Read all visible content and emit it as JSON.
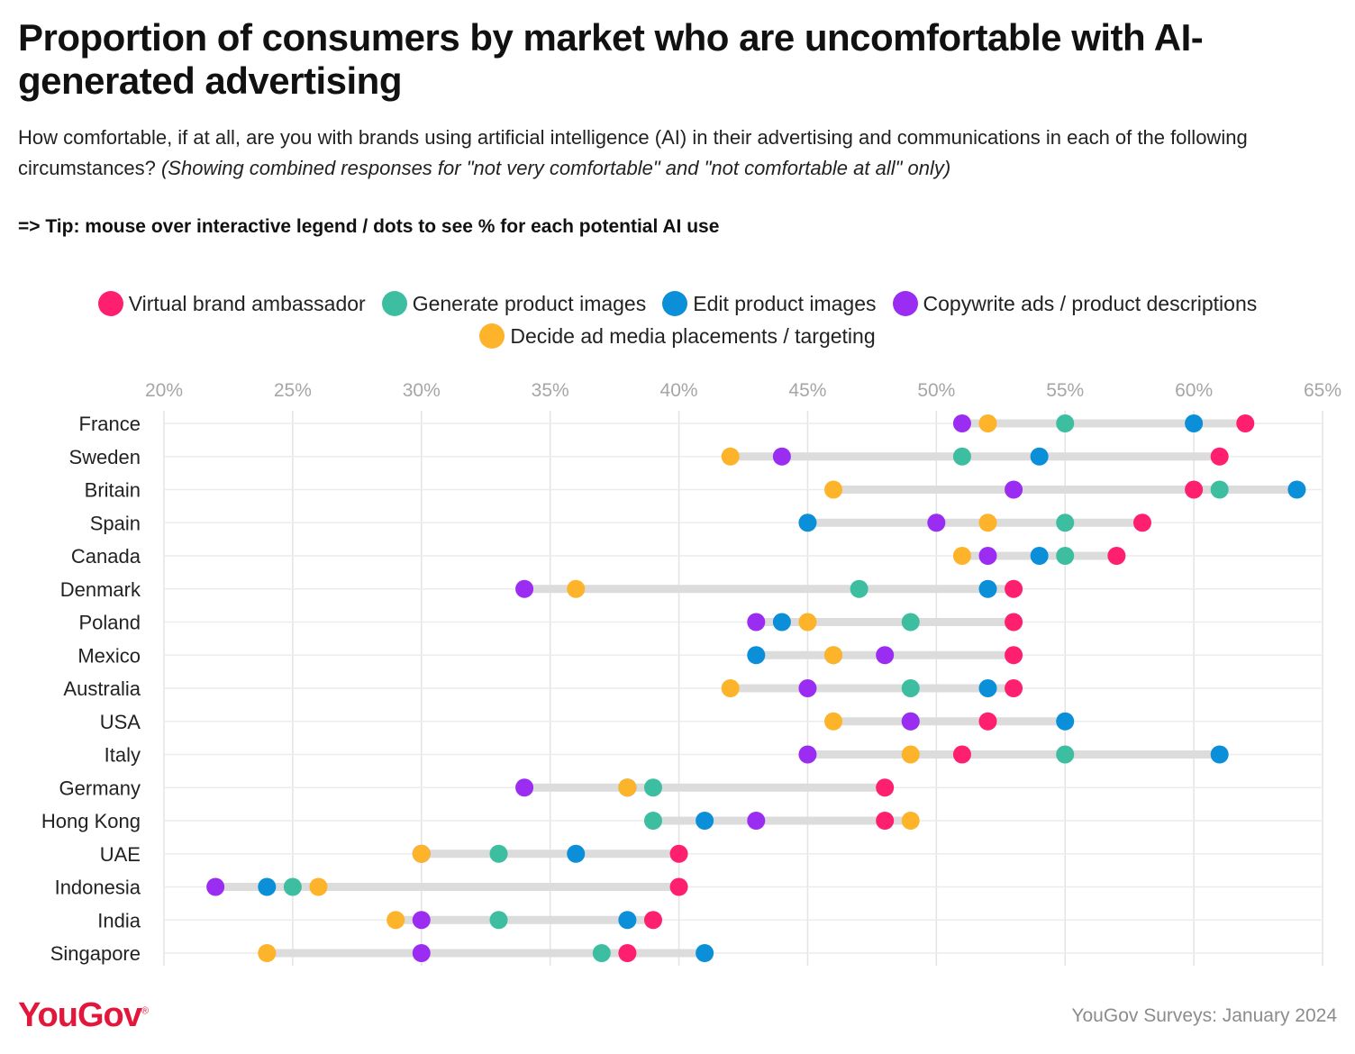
{
  "header": {
    "title": "Proportion of consumers by market who are uncomfortable with AI-generated advertising",
    "subtitle": "How comfortable, if at all, are you with brands using artificial intelligence (AI) in their advertising and communications in each of the following circumstances?",
    "subtitle_note": "(Showing combined responses for \"not very comfortable\" and \"not comfortable at all\" only)",
    "tip": "=> Tip: mouse over interactive legend / dots to see % for each potential AI use"
  },
  "footer": {
    "logo": "YouGov",
    "logo_mark": "®",
    "source": "YouGov Surveys: January 2024"
  },
  "chart_data": {
    "type": "dot-range",
    "title": "Proportion of consumers by market who are uncomfortable with AI-generated advertising",
    "xlabel": "",
    "ylabel": "",
    "xlim": [
      20,
      65
    ],
    "x_ticks": [
      20,
      25,
      30,
      35,
      40,
      45,
      50,
      55,
      60,
      65
    ],
    "tick_suffix": "%",
    "grid": true,
    "legend_position": "top-center",
    "categories": [
      "France",
      "Sweden",
      "Britain",
      "Spain",
      "Canada",
      "Denmark",
      "Poland",
      "Mexico",
      "Australia",
      "USA",
      "Italy",
      "Germany",
      "Hong Kong",
      "UAE",
      "Indonesia",
      "India",
      "Singapore"
    ],
    "series": [
      {
        "name": "Virtual brand ambassador",
        "color": "#ff1f6f",
        "values": [
          62,
          61,
          60,
          58,
          57,
          53,
          53,
          53,
          53,
          52,
          51,
          48,
          48,
          40,
          40,
          39,
          38
        ]
      },
      {
        "name": "Generate product images",
        "color": "#3ebea0",
        "values": [
          55,
          51,
          61,
          55,
          55,
          47,
          49,
          46,
          49,
          49,
          55,
          39,
          39,
          33,
          25,
          33,
          37
        ]
      },
      {
        "name": "Edit product images",
        "color": "#0a8fd8",
        "values": [
          60,
          54,
          64,
          45,
          54,
          52,
          44,
          43,
          52,
          55,
          61,
          38,
          41,
          36,
          24,
          38,
          41
        ]
      },
      {
        "name": "Copywrite ads / product descriptions",
        "color": "#9b2df3",
        "values": [
          51,
          44,
          53,
          50,
          52,
          34,
          43,
          48,
          45,
          49,
          45,
          34,
          43,
          30,
          22,
          30,
          30
        ]
      },
      {
        "name": "Decide ad media placements / targeting",
        "color": "#fdb32a",
        "values": [
          52,
          42,
          46,
          52,
          51,
          36,
          45,
          46,
          42,
          46,
          49,
          38,
          49,
          30,
          26,
          29,
          24
        ]
      }
    ]
  }
}
